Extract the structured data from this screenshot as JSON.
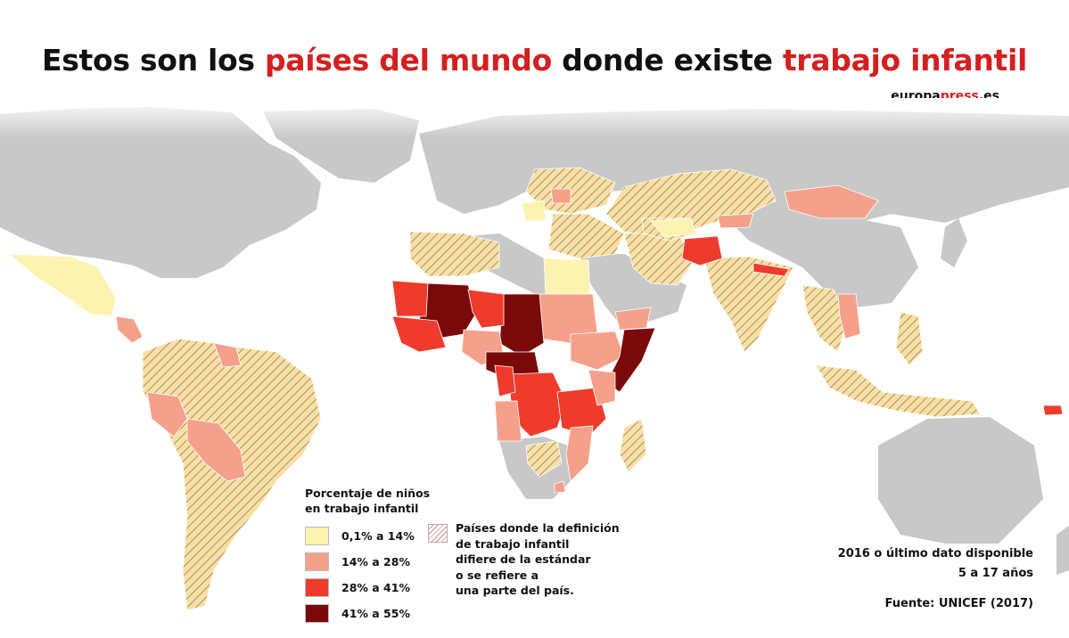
{
  "title": {
    "part1": "Estos son los ",
    "part2": "países del mundo",
    "part3": " donde existe ",
    "part4": "trabajo infantil"
  },
  "brand": {
    "part1": "europa",
    "part2": "press",
    "part3": ".es"
  },
  "legend": {
    "title_line1": "Porcentaje de niños",
    "title_line2": "en trabajo infantil",
    "items": [
      {
        "label": "0,1% a 14%",
        "color": "#fdf3b0"
      },
      {
        "label": "14% a 28%",
        "color": "#f5a08a"
      },
      {
        "label": "28% a 41%",
        "color": "#ee3b2c"
      },
      {
        "label": "41% a 55%",
        "color": "#7a0a0a"
      }
    ],
    "hatch_lines": [
      "Países donde la definición",
      "de trabajo infantil",
      "difiere de la estándar",
      "o se refiere a",
      "una parte del país."
    ]
  },
  "notes": {
    "date": "2016 o último dato disponible",
    "ages": "5 a 17 años",
    "source": "Fuente: UNICEF (2017)"
  },
  "colors": {
    "land": "#c8c8c8",
    "hatch_base": "#f7e0a8",
    "hatch_line": "#a07a3a",
    "accent": "#d42020"
  }
}
